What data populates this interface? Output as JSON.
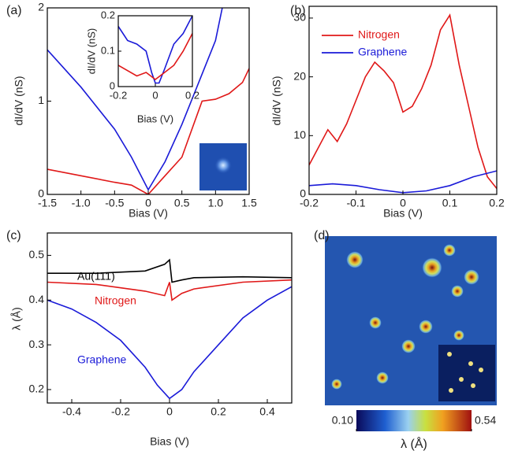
{
  "chart_data": [
    {
      "type": "line",
      "label": "(a)",
      "xlabel": "Bias (V)",
      "ylabel": "dI/dV (nS)",
      "xlim": [
        -1.5,
        1.5
      ],
      "xticks": [
        -1.5,
        {
          "value": -1,
          "label": "-1.0"
        },
        -0.5,
        0,
        0.5,
        {
          "value": 1,
          "label": "1.0"
        },
        1.5
      ],
      "ylim": [
        0,
        2
      ],
      "yticks": [
        0,
        1,
        2
      ],
      "series": [
        {
          "color": "#1a1ad8",
          "x": [
            -1.5,
            -1,
            -0.5,
            -0.25,
            0,
            0.25,
            0.5,
            0.75,
            1,
            1.1
          ],
          "values": [
            1.55,
            1.15,
            0.7,
            0.4,
            0.05,
            0.35,
            0.75,
            1.2,
            1.65,
            2.0
          ]
        },
        {
          "color": "#e01818",
          "x": [
            -1.5,
            -1,
            -0.5,
            -0.25,
            0,
            0.25,
            0.5,
            0.6,
            0.75,
            0.8,
            1,
            1.2,
            1.4,
            1.5
          ],
          "values": [
            0.27,
            0.2,
            0.13,
            0.1,
            0.0,
            0.2,
            0.4,
            0.6,
            0.9,
            1.0,
            1.02,
            1.08,
            1.2,
            1.35
          ]
        }
      ]
    },
    {
      "type": "line",
      "xlabel": "Bias (V)",
      "ylabel": "dI/dV (nS)",
      "xlim": [
        -0.2,
        0.2
      ],
      "xticks": [
        -0.2,
        0,
        0.2
      ],
      "ylim": [
        0,
        0.2
      ],
      "yticks": [
        0,
        0.1,
        0.2
      ],
      "series": [
        {
          "color": "#1a1ad8",
          "x": [
            -0.2,
            -0.15,
            -0.1,
            -0.05,
            -0.02,
            0,
            0.02,
            0.05,
            0.1,
            0.15,
            0.2
          ],
          "values": [
            0.17,
            0.13,
            0.12,
            0.1,
            0.04,
            0.01,
            0.01,
            0.05,
            0.12,
            0.15,
            0.2
          ]
        },
        {
          "color": "#e01818",
          "x": [
            -0.2,
            -0.1,
            -0.05,
            0,
            0.05,
            0.1,
            0.15,
            0.2
          ],
          "values": [
            0.06,
            0.03,
            0.04,
            0.02,
            0.04,
            0.06,
            0.1,
            0.15
          ]
        }
      ]
    },
    {
      "type": "line",
      "label": "(b)",
      "xlabel": "Bias (V)",
      "ylabel": "dI/dV (nS)",
      "legend": "upper left",
      "xlim": [
        -0.2,
        0.2
      ],
      "xticks": [
        -0.2,
        -0.1,
        0,
        0.1,
        0.2
      ],
      "ylim": [
        0,
        32
      ],
      "yticks": [
        0,
        10,
        20,
        30
      ],
      "series": [
        {
          "name": "Nitrogen",
          "color": "#e01818",
          "x": [
            -0.2,
            -0.18,
            -0.16,
            -0.14,
            -0.12,
            -0.1,
            -0.08,
            -0.06,
            -0.04,
            -0.02,
            0,
            0.02,
            0.04,
            0.06,
            0.08,
            0.1,
            0.12,
            0.14,
            0.16,
            0.18,
            0.2
          ],
          "values": [
            5,
            8,
            11,
            9,
            12,
            16,
            20,
            22.5,
            21,
            19,
            14,
            15,
            18,
            22,
            28,
            30.5,
            22,
            15,
            8,
            3,
            1
          ]
        },
        {
          "name": "Graphene",
          "color": "#1a1ad8",
          "x": [
            -0.2,
            -0.15,
            -0.1,
            -0.05,
            0,
            0.05,
            0.1,
            0.15,
            0.2
          ],
          "values": [
            1.5,
            1.8,
            1.5,
            0.8,
            0.3,
            0.6,
            1.5,
            3,
            4
          ]
        }
      ]
    },
    {
      "type": "line",
      "label": "(c)",
      "xlabel": "Bias (V)",
      "ylabel": "λ (Å)",
      "xlim": [
        -0.5,
        0.5
      ],
      "xticks": [
        -0.4,
        -0.2,
        0,
        0.2,
        0.4
      ],
      "ylim": [
        0.17,
        0.55
      ],
      "yticks": [
        0.2,
        0.3,
        0.4,
        0.5
      ],
      "series": [
        {
          "name": "Au(111)",
          "color": "#000000",
          "x": [
            -0.5,
            -0.3,
            -0.1,
            -0.02,
            0,
            0.01,
            0.05,
            0.1,
            0.3,
            0.5
          ],
          "values": [
            0.46,
            0.46,
            0.465,
            0.48,
            0.49,
            0.44,
            0.445,
            0.45,
            0.452,
            0.45
          ]
        },
        {
          "name": "Nitrogen",
          "color": "#e01818",
          "x": [
            -0.5,
            -0.3,
            -0.1,
            -0.02,
            0,
            0.01,
            0.05,
            0.1,
            0.3,
            0.5
          ],
          "values": [
            0.44,
            0.435,
            0.42,
            0.41,
            0.44,
            0.4,
            0.415,
            0.425,
            0.44,
            0.445
          ]
        },
        {
          "name": "Graphene",
          "color": "#1a1ad8",
          "x": [
            -0.5,
            -0.4,
            -0.3,
            -0.2,
            -0.1,
            -0.05,
            0,
            0.05,
            0.1,
            0.2,
            0.3,
            0.4,
            0.5
          ],
          "values": [
            0.4,
            0.38,
            0.35,
            0.31,
            0.25,
            0.21,
            0.18,
            0.2,
            0.24,
            0.3,
            0.36,
            0.4,
            0.43
          ]
        }
      ]
    },
    {
      "type": "heatmap",
      "label": "(d)",
      "colorbar_label": "λ (Å)",
      "colorbar_ticks": [
        {
          "value": 0.1,
          "label": "0.10"
        },
        0.54
      ]
    }
  ]
}
